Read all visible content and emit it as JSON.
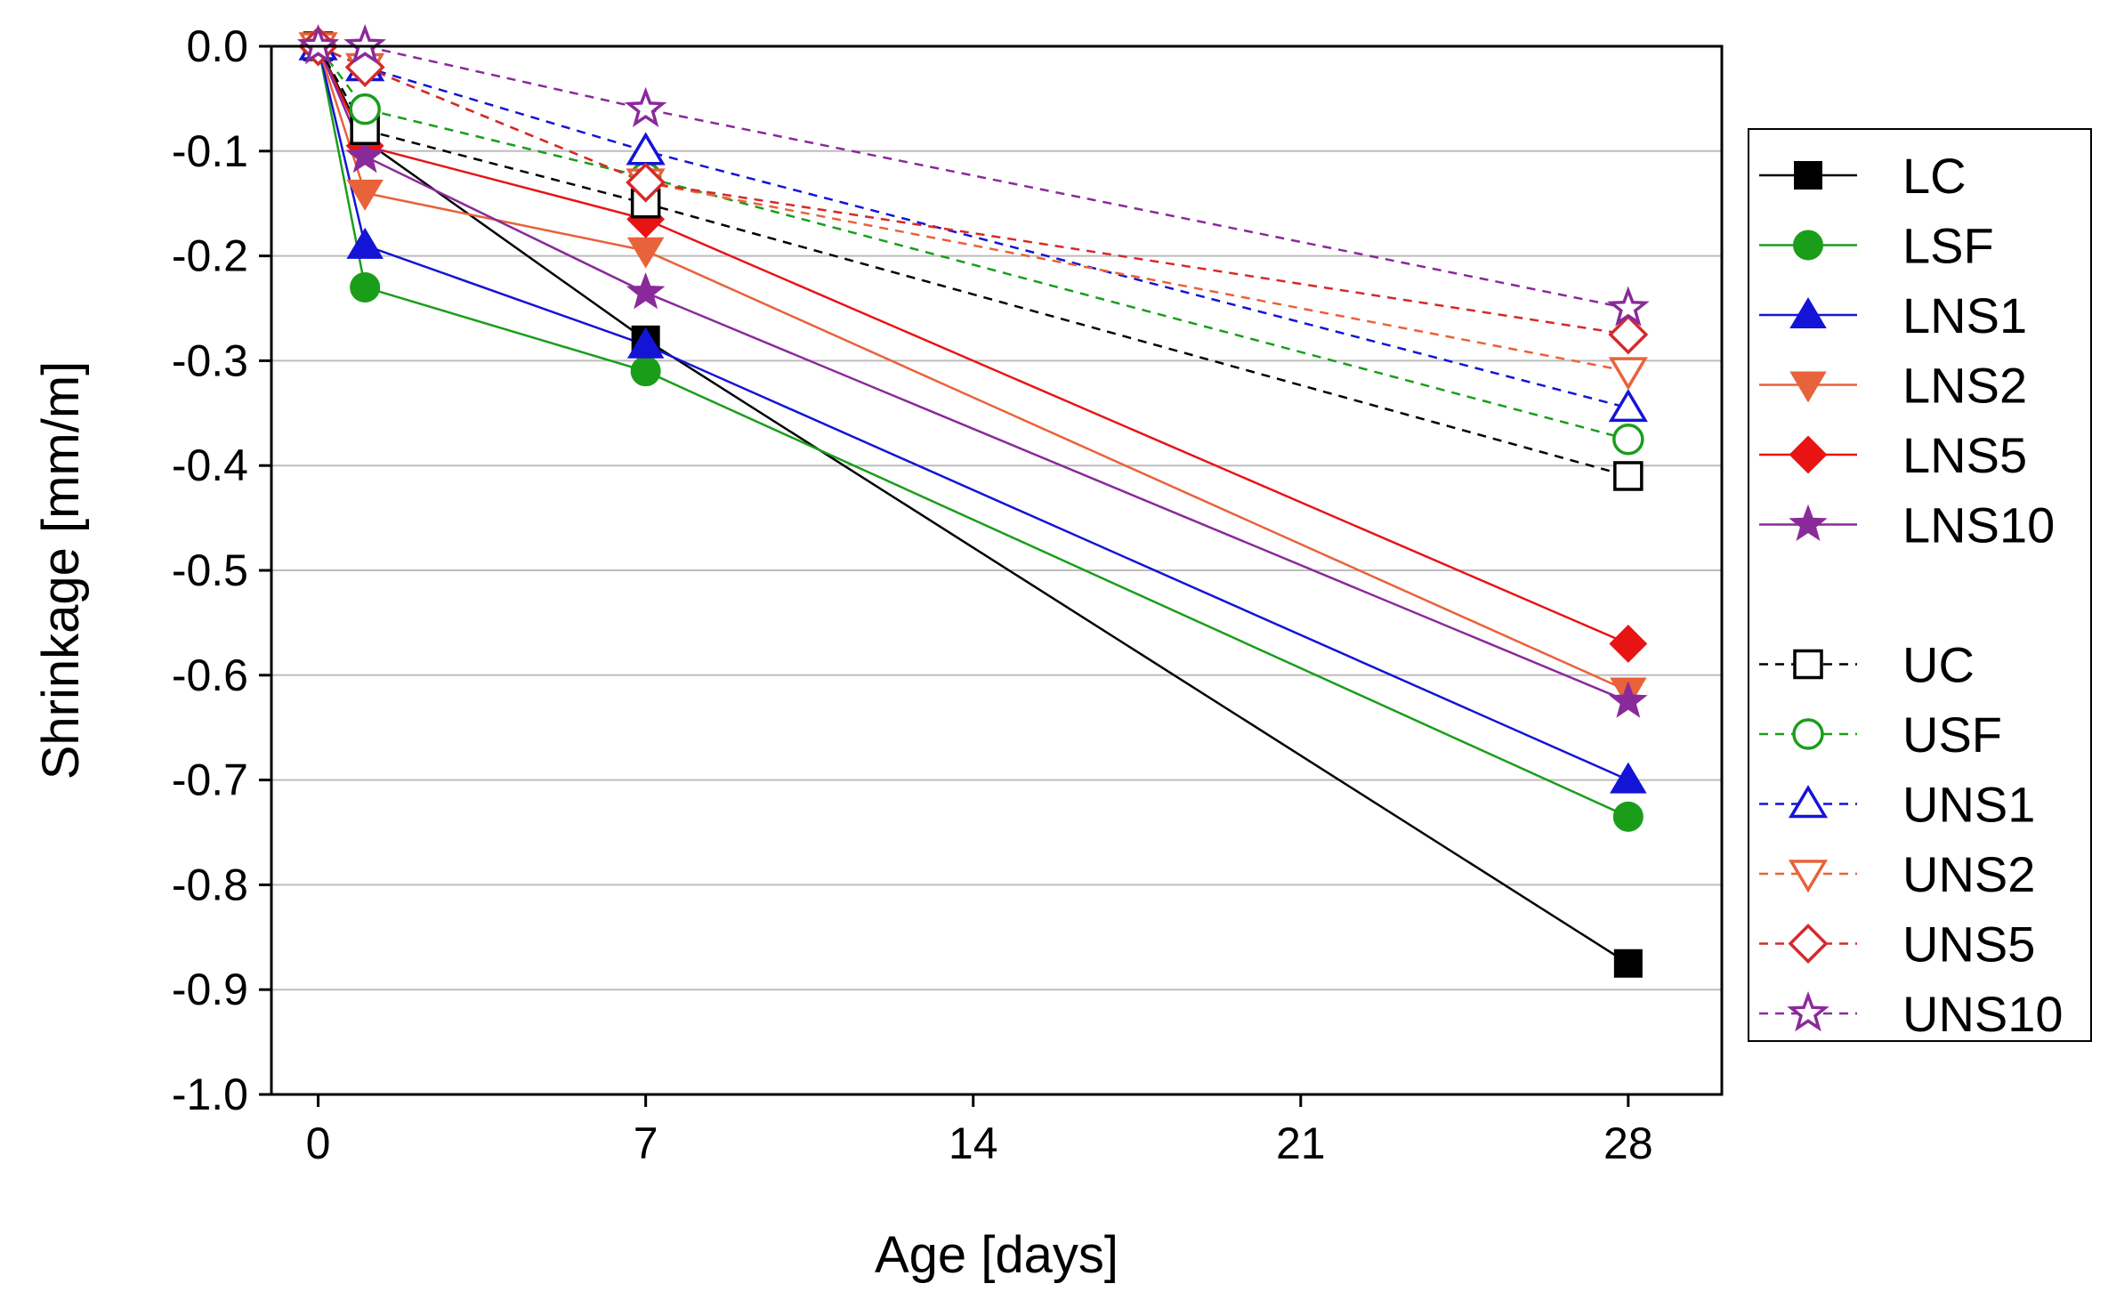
{
  "chart_data": {
    "type": "line",
    "xlabel": "Age [days]",
    "ylabel": "Shrinkage [mm/m]",
    "xlim": [
      -1,
      30
    ],
    "ylim": [
      -1.0,
      0.0
    ],
    "xticks": [
      0,
      7,
      14,
      21,
      28
    ],
    "xtick_labels": [
      "0",
      "7",
      "14",
      "21",
      "28"
    ],
    "yticks": [
      0.0,
      -0.1,
      -0.2,
      -0.3,
      -0.4,
      -0.5,
      -0.6,
      -0.7,
      -0.8,
      -0.9,
      -1.0
    ],
    "ytick_labels": [
      "0.0",
      "-0.1",
      "-0.2",
      "-0.3",
      "-0.4",
      "-0.5",
      "-0.6",
      "-0.7",
      "-0.8",
      "-0.9",
      "-1.0"
    ],
    "grid": "horizontal",
    "legend_position": "right, outside plot",
    "x": [
      0,
      1,
      7,
      28
    ],
    "series": [
      {
        "name": "LC",
        "values": [
          0.0,
          -0.09,
          -0.28,
          -0.875
        ],
        "color": "#000000",
        "marker": "square",
        "filled": true,
        "dashed": false
      },
      {
        "name": "LSF",
        "values": [
          0.0,
          -0.23,
          -0.31,
          -0.735
        ],
        "color": "#1a9e1a",
        "marker": "circle",
        "filled": true,
        "dashed": false
      },
      {
        "name": "LNS1",
        "values": [
          0.0,
          -0.19,
          -0.285,
          -0.7
        ],
        "color": "#1414d6",
        "marker": "triangle-up",
        "filled": true,
        "dashed": false
      },
      {
        "name": "LNS2",
        "values": [
          0.0,
          -0.14,
          -0.195,
          -0.615
        ],
        "color": "#e8623a",
        "marker": "triangle-down",
        "filled": true,
        "dashed": false
      },
      {
        "name": "LNS5",
        "values": [
          0.0,
          -0.095,
          -0.165,
          -0.57
        ],
        "color": "#e81414",
        "marker": "diamond",
        "filled": true,
        "dashed": false
      },
      {
        "name": "LNS10",
        "values": [
          0.0,
          -0.105,
          -0.235,
          -0.625
        ],
        "color": "#8a2a9a",
        "marker": "star",
        "filled": true,
        "dashed": false
      },
      {
        "name": "UC",
        "values": [
          0.0,
          -0.08,
          -0.15,
          -0.41
        ],
        "color": "#000000",
        "marker": "square",
        "filled": false,
        "dashed": true
      },
      {
        "name": "USF",
        "values": [
          0.0,
          -0.06,
          -0.125,
          -0.375
        ],
        "color": "#1a9e1a",
        "marker": "circle",
        "filled": false,
        "dashed": true
      },
      {
        "name": "UNS1",
        "values": [
          0.0,
          -0.02,
          -0.1,
          -0.345
        ],
        "color": "#1414d6",
        "marker": "triangle-up",
        "filled": false,
        "dashed": true
      },
      {
        "name": "UNS2",
        "values": [
          0.0,
          -0.02,
          -0.13,
          -0.31
        ],
        "color": "#e8623a",
        "marker": "triangle-down",
        "filled": false,
        "dashed": true
      },
      {
        "name": "UNS5",
        "values": [
          0.0,
          -0.02,
          -0.13,
          -0.275
        ],
        "color": "#d42a2a",
        "marker": "diamond",
        "filled": false,
        "dashed": true
      },
      {
        "name": "UNS10",
        "values": [
          0.0,
          0.0,
          -0.06,
          -0.25
        ],
        "color": "#8a2a9a",
        "marker": "star",
        "filled": false,
        "dashed": true
      }
    ]
  }
}
